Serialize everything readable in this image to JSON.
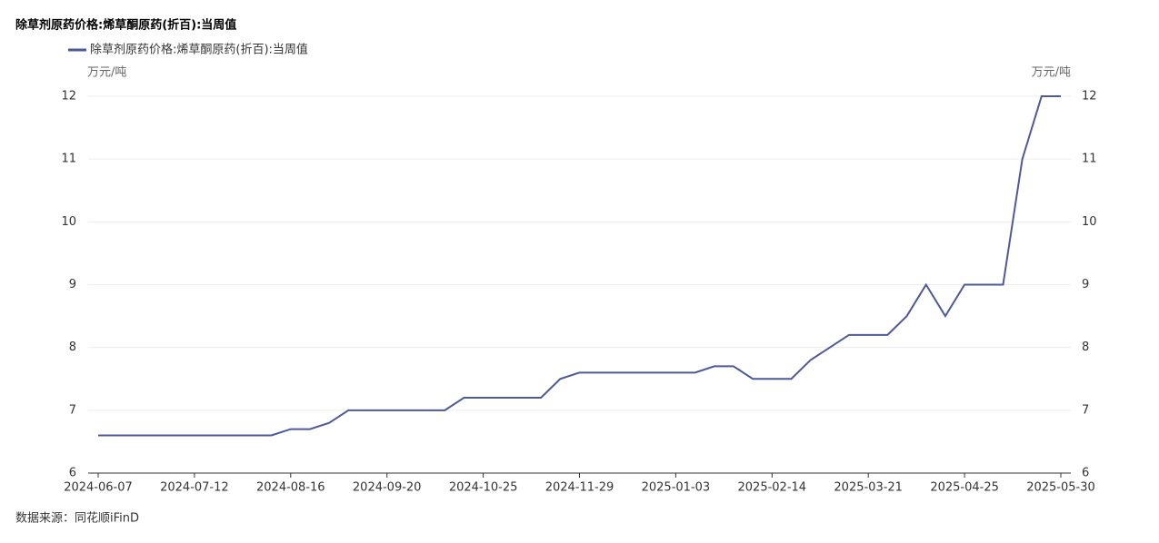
{
  "chart_data": {
    "type": "line",
    "title": "除草剂原药价格:烯草酮原药(折百):当周值",
    "source": "数据来源：同花顺iFinD",
    "y_label": "万元/吨",
    "y2_label": "万元/吨",
    "categories": [
      "2024-06-07",
      null,
      null,
      null,
      null,
      "2024-07-12",
      null,
      null,
      null,
      null,
      "2024-08-16",
      null,
      null,
      null,
      null,
      "2024-09-20",
      null,
      null,
      null,
      null,
      "2024-10-25",
      null,
      null,
      null,
      null,
      "2024-11-29",
      null,
      null,
      null,
      null,
      "2025-01-03",
      null,
      null,
      null,
      null,
      "2025-02-14",
      null,
      null,
      null,
      null,
      "2025-03-21",
      null,
      null,
      null,
      null,
      "2025-04-25",
      null,
      null,
      null,
      null,
      "2025-05-30"
    ],
    "series": [
      {
        "name": "除草剂原药价格:烯草酮原药(折百):当周值",
        "color": "#4e5a96",
        "values": [
          6.6,
          6.6,
          6.6,
          6.6,
          6.6,
          6.6,
          6.6,
          6.6,
          6.6,
          6.6,
          6.7,
          6.7,
          6.8,
          7.0,
          7.0,
          7.0,
          7.0,
          7.0,
          7.0,
          7.2,
          7.2,
          7.2,
          7.2,
          7.2,
          7.5,
          7.6,
          7.6,
          7.6,
          7.6,
          7.6,
          7.6,
          7.6,
          7.7,
          7.7,
          7.5,
          7.5,
          7.5,
          7.8,
          8.0,
          8.2,
          8.2,
          8.2,
          8.5,
          9.0,
          8.5,
          9.0,
          9.0,
          9.0,
          11,
          12,
          12
        ]
      }
    ],
    "ylim": [
      6,
      12
    ],
    "yticks": [
      6,
      7,
      8,
      9,
      10,
      11,
      12
    ],
    "y2lim": [
      6,
      12
    ],
    "y2ticks": [
      6,
      7,
      8,
      9,
      10,
      11,
      12
    ],
    "grid": true
  }
}
